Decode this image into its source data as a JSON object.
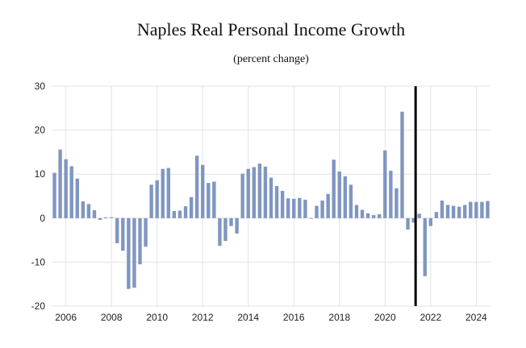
{
  "chart_data": {
    "type": "bar",
    "title": "Naples Real Personal Income Growth",
    "subtitle": "(percent change)",
    "xlabel": "",
    "ylabel": "",
    "ylim": [
      -20,
      30
    ],
    "y_ticks": [
      30,
      20,
      10,
      0,
      -10,
      -20
    ],
    "x_tick_labels": [
      "2006",
      "2008",
      "2010",
      "2012",
      "2014",
      "2016",
      "2018",
      "2020",
      "2022",
      "2024"
    ],
    "grid": true,
    "forecast_divider_after_category": "2021Q2",
    "colors": {
      "bar": "#7f96c0",
      "divider": "#000000",
      "grid": "#e3e3e3"
    },
    "categories": [
      "2005Q3",
      "2005Q4",
      "2006Q1",
      "2006Q2",
      "2006Q3",
      "2006Q4",
      "2007Q1",
      "2007Q2",
      "2007Q3",
      "2007Q4",
      "2008Q1",
      "2008Q2",
      "2008Q3",
      "2008Q4",
      "2009Q1",
      "2009Q2",
      "2009Q3",
      "2009Q4",
      "2010Q1",
      "2010Q2",
      "2010Q3",
      "2010Q4",
      "2011Q1",
      "2011Q2",
      "2011Q3",
      "2011Q4",
      "2012Q1",
      "2012Q2",
      "2012Q3",
      "2012Q4",
      "2013Q1",
      "2013Q2",
      "2013Q3",
      "2013Q4",
      "2014Q1",
      "2014Q2",
      "2014Q3",
      "2014Q4",
      "2015Q1",
      "2015Q2",
      "2015Q3",
      "2015Q4",
      "2016Q1",
      "2016Q2",
      "2016Q3",
      "2016Q4",
      "2017Q1",
      "2017Q2",
      "2017Q3",
      "2017Q4",
      "2018Q1",
      "2018Q2",
      "2018Q3",
      "2018Q4",
      "2019Q1",
      "2019Q2",
      "2019Q3",
      "2019Q4",
      "2020Q1",
      "2020Q2",
      "2020Q3",
      "2020Q4",
      "2021Q1",
      "2021Q2",
      "2021Q3",
      "2021Q4",
      "2022Q1",
      "2022Q2",
      "2022Q3",
      "2022Q4",
      "2023Q1",
      "2023Q2",
      "2023Q3",
      "2023Q4",
      "2024Q1",
      "2024Q2",
      "2024Q3"
    ],
    "values": [
      10.3,
      15.6,
      13.4,
      11.8,
      9.0,
      3.8,
      3.2,
      1.8,
      -0.4,
      0.2,
      0.2,
      -5.7,
      -7.4,
      -16.1,
      -15.8,
      -10.5,
      -6.5,
      7.6,
      8.6,
      11.2,
      11.4,
      1.6,
      1.7,
      2.7,
      4.8,
      14.2,
      12.1,
      8.0,
      8.3,
      -6.3,
      -5.2,
      -1.8,
      -3.5,
      10.1,
      11.2,
      11.6,
      12.4,
      11.7,
      9.2,
      7.3,
      6.2,
      4.5,
      4.4,
      4.6,
      4.2,
      0.0,
      2.8,
      4.0,
      5.5,
      13.3,
      10.6,
      9.5,
      7.6,
      3.0,
      1.9,
      1.1,
      0.7,
      0.9,
      15.4,
      10.8,
      6.8,
      24.2,
      -2.6,
      -1.0,
      1.0,
      -13.2,
      -1.8,
      1.4,
      4.0,
      3.0,
      2.8,
      2.6,
      3.0,
      3.7,
      3.7,
      3.7,
      3.9
    ]
  }
}
